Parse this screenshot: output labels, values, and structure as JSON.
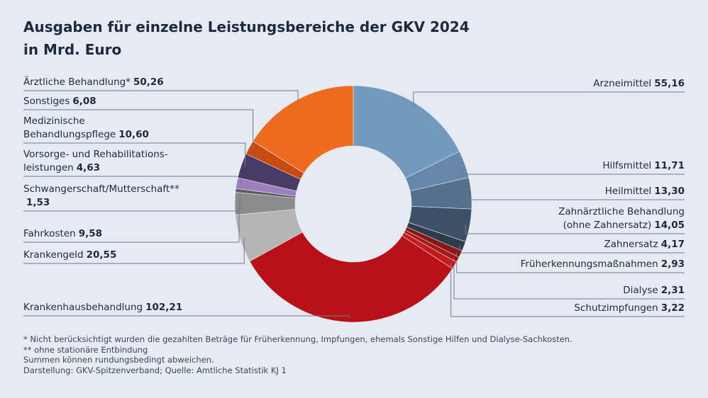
{
  "chart_data": {
    "type": "donut",
    "title": "Ausgaben für einzelne Leistungsbereiche der GKV 2024",
    "subtitle": "in Mrd. Euro",
    "categories": [
      "Arzneimittel",
      "Hilfsmittel",
      "Heilmittel",
      "Zahnärztliche Behandlung\n(ohne Zahnersatz)",
      "Zahnersatz",
      "Früherkennungsmaßnahmen",
      "Dialyse",
      "Schutzimpfungen",
      "Krankenhausbehandlung",
      "Krankengeld",
      "Fahrkosten",
      "Schwangerschaft/Mutterschaft**\n",
      "Vorsorge- und Rehabilitations-\nleistungen",
      "Medizinische\nBehandlungspflege",
      "Sonstiges",
      "Ärztliche Behandlung*"
    ],
    "values": [
      55.16,
      11.71,
      13.3,
      14.05,
      4.17,
      2.93,
      2.31,
      3.22,
      102.21,
      20.55,
      9.58,
      1.53,
      4.63,
      10.6,
      6.08,
      50.26
    ],
    "value_labels": [
      "55,16",
      "11,71",
      "13,30",
      "14,05",
      "4,17",
      "2,93",
      "2,31",
      "3,22",
      "102,21",
      "20,55",
      "9,58",
      "1,53",
      "4,63",
      "10,60",
      "6,08",
      "50,26"
    ],
    "colors": [
      "#7399bf",
      "#6688aa",
      "#54708c",
      "#3d5166",
      "#2c3c4e",
      "#8a1616",
      "#a51818",
      "#c41c1c",
      "#b81118",
      "#b5b5b5",
      "#8c8c8c",
      "#5c5c5c",
      "#9d7fc0",
      "#4a3a66",
      "#c84a10",
      "#ec6b1e"
    ],
    "notes": [
      "*   Nicht berücksichtigt wurden die gezahlten Beträge für Früherkennung, Impfungen, ehemals Sonstige Hilfen und Dialyse-Sachkosten.",
      "** ohne stationäre Entbindung",
      "Summen können rundungsbedingt abweichen.",
      "Darstellung: GKV-Spitzenverband; Quelle: Amtliche Statistik KJ 1"
    ]
  }
}
